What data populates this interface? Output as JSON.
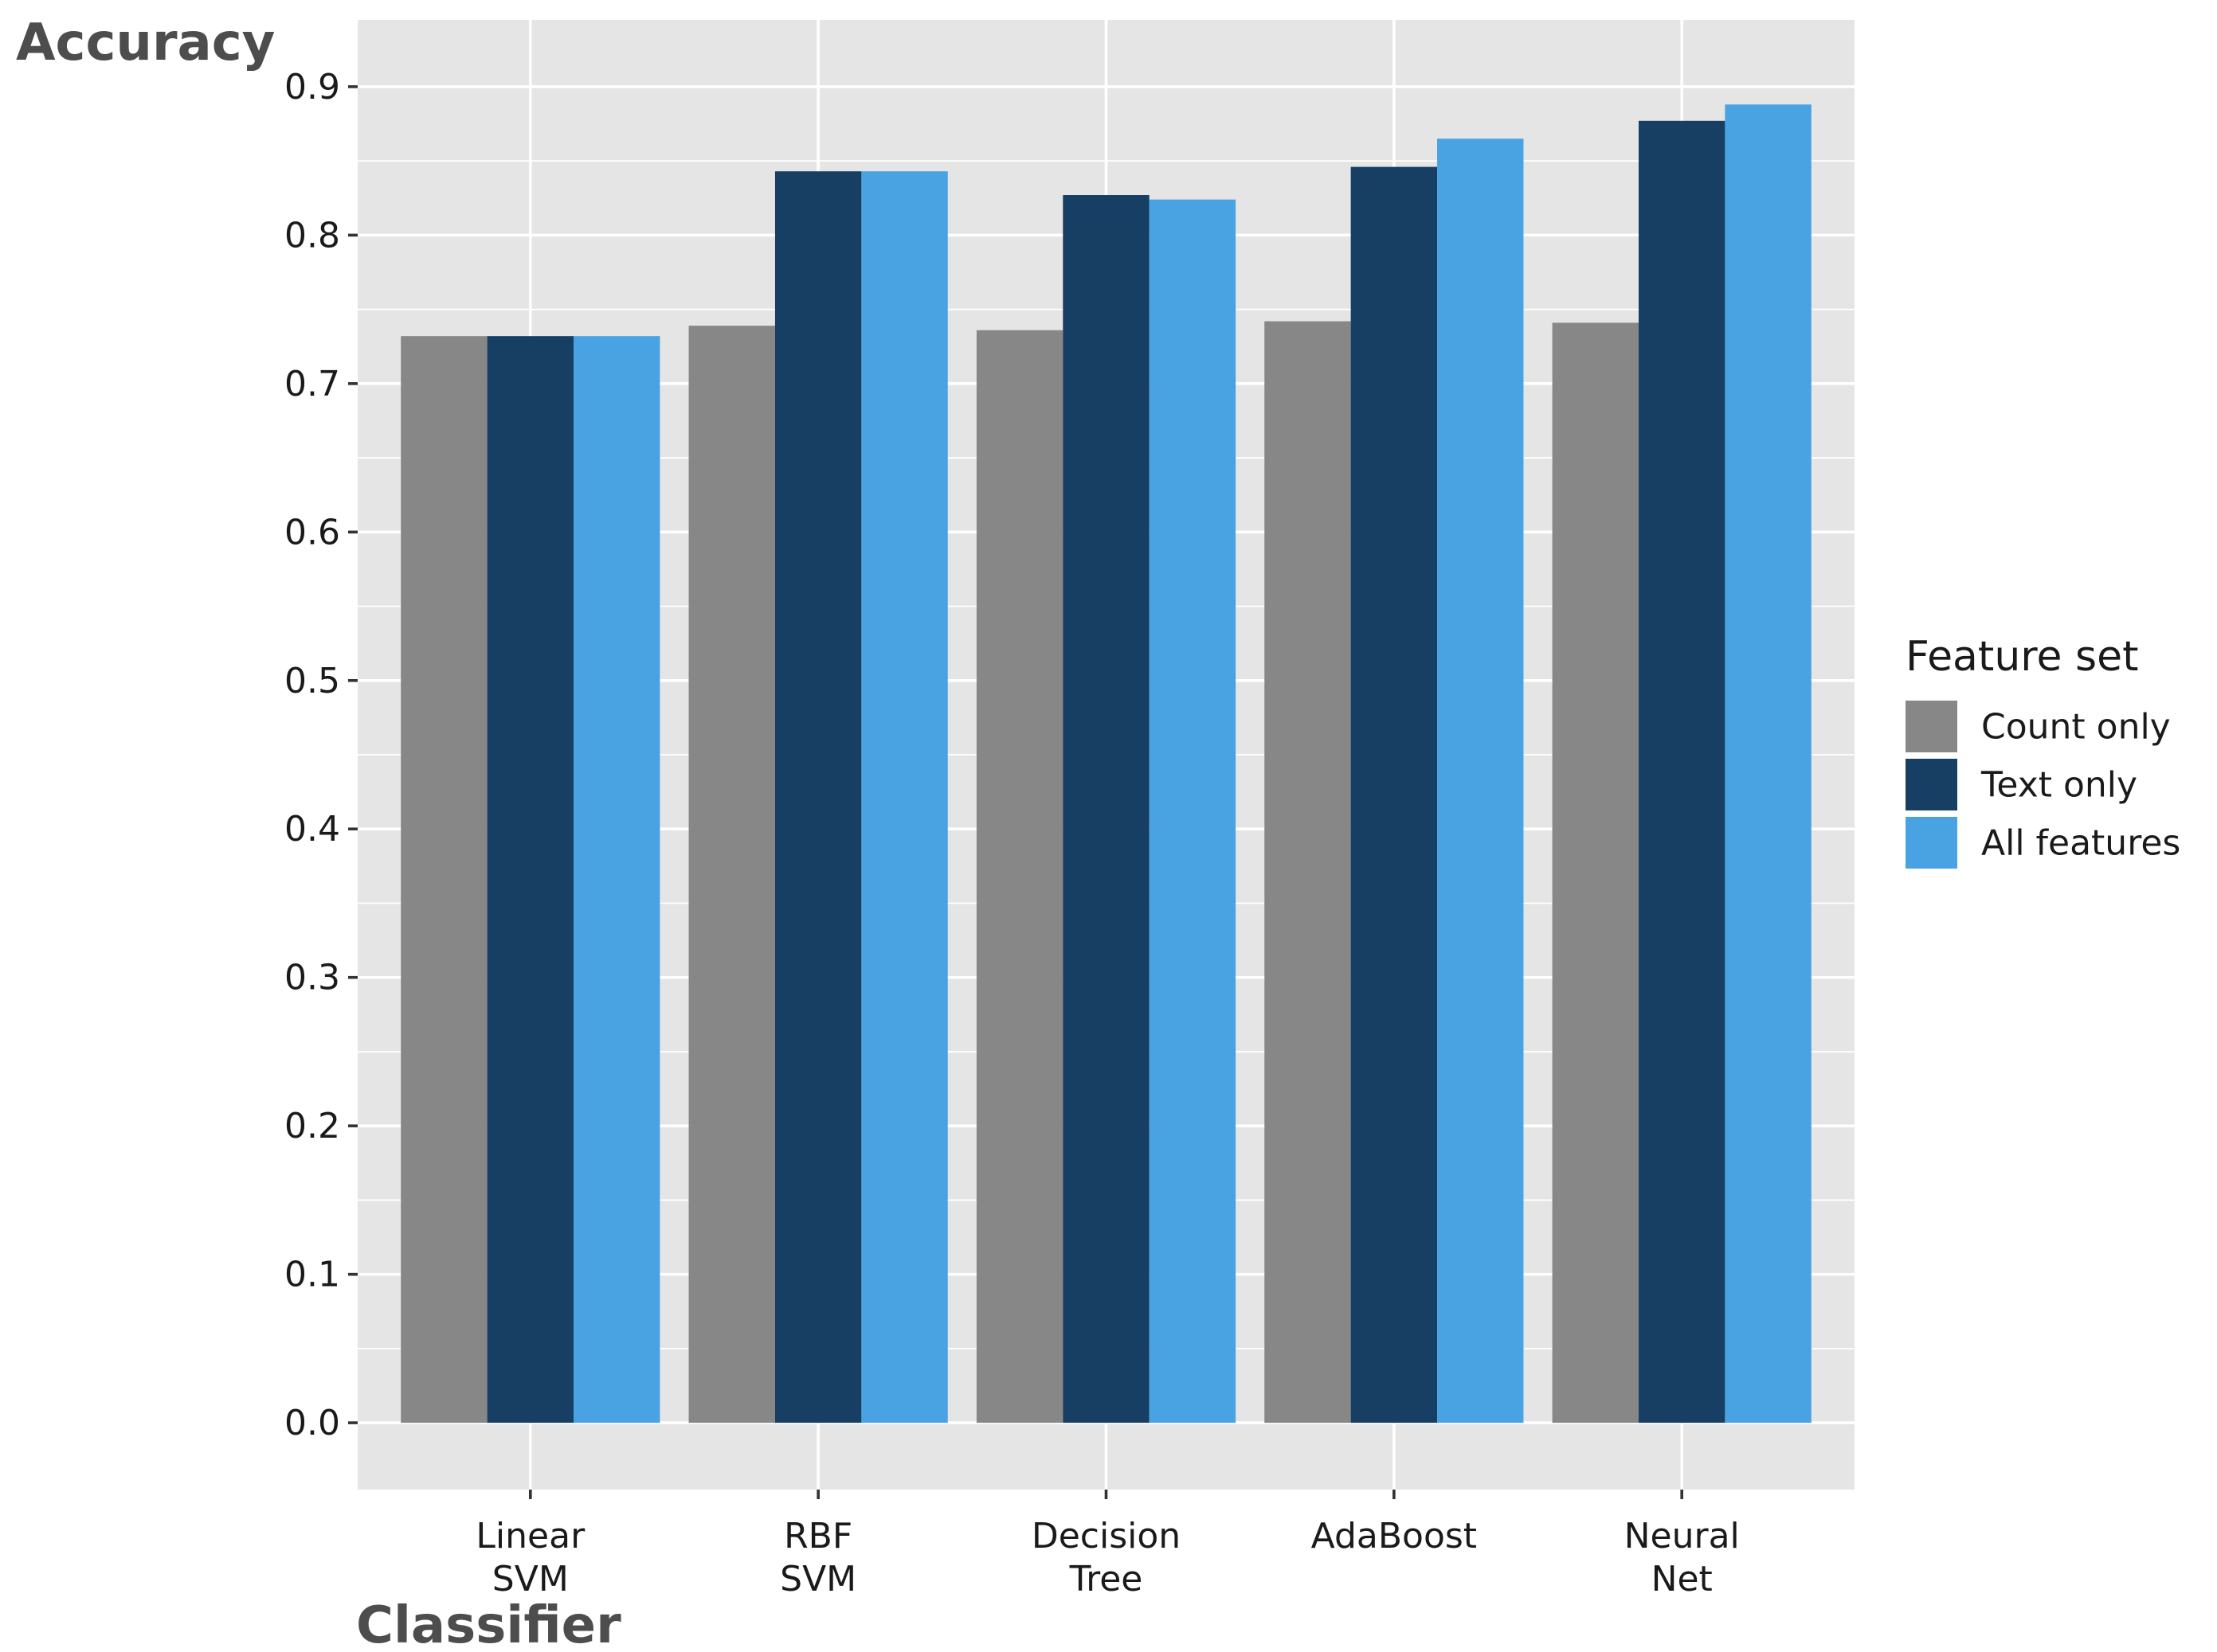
{
  "chart_data": {
    "type": "bar",
    "title": "",
    "xlabel": "Classifier",
    "ylabel": "Accuracy",
    "ylim": [
      -0.045,
      0.945
    ],
    "y_ticks": [
      "0.0",
      "0.1",
      "0.2",
      "0.3",
      "0.4",
      "0.5",
      "0.6",
      "0.7",
      "0.8",
      "0.9"
    ],
    "grid": true,
    "legend_position": "right",
    "categories": [
      [
        "Linear",
        "SVM"
      ],
      [
        "RBF",
        "SVM"
      ],
      [
        "Decision",
        "Tree"
      ],
      [
        "AdaBoost"
      ],
      [
        "Neural",
        "Net"
      ]
    ],
    "legend_title": "Feature set",
    "series": [
      {
        "name": "Count only",
        "color": "#878787",
        "values": [
          0.732,
          0.739,
          0.736,
          0.742,
          0.741
        ]
      },
      {
        "name": "Text only",
        "color": "#163f63",
        "values": [
          0.732,
          0.843,
          0.827,
          0.846,
          0.877
        ]
      },
      {
        "name": "All features",
        "color": "#49a2e2",
        "values": [
          0.732,
          0.843,
          0.824,
          0.865,
          0.888
        ]
      }
    ]
  }
}
